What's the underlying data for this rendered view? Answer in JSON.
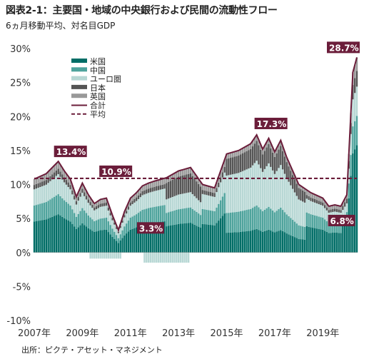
{
  "header": {
    "title": "図表2-1：主要国・地域の中央銀行および民間の流動性フロー",
    "subtitle": "6ヵ月移動平均、対名目GDP"
  },
  "footer": {
    "source": "出所：ピクテ・アセット・マネジメント"
  },
  "colors": {
    "us": "#006d66",
    "china": "#4ea39c",
    "euro": "#b7d7d4",
    "japan": "#555555",
    "uk": "#999999",
    "total": "#6b1d3a",
    "average": "#6b1d3a",
    "callout_bg": "#6b1d3a"
  },
  "chart_data": {
    "type": "area",
    "title": "",
    "xlabel": "",
    "ylabel": "",
    "ylim": [
      -10,
      30
    ],
    "yticks": [
      "30%",
      "25%",
      "20%",
      "15%",
      "10%",
      "5%",
      "0%",
      "-5%",
      "-10%"
    ],
    "yticks_values": [
      30,
      25,
      20,
      15,
      10,
      5,
      0,
      -5,
      -10
    ],
    "xticks": [
      "2007年",
      "2009年",
      "2011年",
      "2013年",
      "2015年",
      "2017年",
      "2019年"
    ],
    "xticks_values": [
      "2007-01",
      "2009-01",
      "2011-01",
      "2013-01",
      "2015-01",
      "2017-01",
      "2019-01"
    ],
    "x_range": [
      "2007-01",
      "2020-06"
    ],
    "grid": false,
    "legend_position": "top-left",
    "series": [
      {
        "name": "米国",
        "style": "stacked-bars",
        "color": "#006d66"
      },
      {
        "name": "中国",
        "style": "stacked-bars",
        "color": "#4ea39c"
      },
      {
        "name": "ユーロ圏",
        "style": "stacked-bars",
        "color": "#b7d7d4"
      },
      {
        "name": "日本",
        "style": "stacked-bars",
        "color": "#555555"
      },
      {
        "name": "英国",
        "style": "stacked-bars",
        "color": "#999999"
      },
      {
        "name": "合計",
        "style": "line",
        "color": "#6b1d3a",
        "x": [
          "2007-01",
          "2007-07",
          "2008-01",
          "2008-04",
          "2008-07",
          "2008-10",
          "2009-01",
          "2009-04",
          "2009-07",
          "2009-10",
          "2010-01",
          "2010-04",
          "2010-07",
          "2010-10",
          "2011-01",
          "2011-04",
          "2011-07",
          "2011-10",
          "2012-01",
          "2012-07",
          "2013-01",
          "2013-07",
          "2014-01",
          "2014-07",
          "2015-01",
          "2015-07",
          "2016-01",
          "2016-04",
          "2016-07",
          "2016-10",
          "2017-01",
          "2017-04",
          "2017-07",
          "2017-10",
          "2018-01",
          "2018-07",
          "2019-01",
          "2019-04",
          "2019-07",
          "2019-10",
          "2020-01",
          "2020-04",
          "2020-06"
        ],
        "values": [
          10.8,
          11.6,
          13.4,
          12.0,
          10.8,
          8.2,
          10.2,
          8.5,
          7.2,
          7.8,
          8.0,
          5.5,
          3.3,
          6.0,
          8.0,
          8.8,
          9.8,
          10.2,
          10.5,
          11.0,
          12.0,
          12.5,
          10.0,
          9.5,
          14.5,
          15.0,
          16.0,
          17.3,
          15.2,
          16.8,
          14.8,
          16.5,
          14.0,
          12.0,
          10.0,
          8.8,
          8.0,
          6.8,
          7.0,
          6.8,
          8.5,
          26.5,
          28.7
        ]
      },
      {
        "name": "平均",
        "style": "dashed-line",
        "color": "#6b1d3a",
        "value": 10.9
      }
    ],
    "annotations": [
      {
        "x": "2008-01",
        "y": 13.4,
        "text": "13.4%"
      },
      {
        "x": "2011-04",
        "y": 10.9,
        "text": "10.9%"
      },
      {
        "x": "2010-07",
        "y": 3.3,
        "text": "3.3%"
      },
      {
        "x": "2016-04",
        "y": 17.3,
        "text": "17.3%"
      },
      {
        "x": "2019-10",
        "y": 6.8,
        "text": "6.8%"
      },
      {
        "x": "2020-06",
        "y": 28.7,
        "text": "28.7%"
      }
    ]
  }
}
